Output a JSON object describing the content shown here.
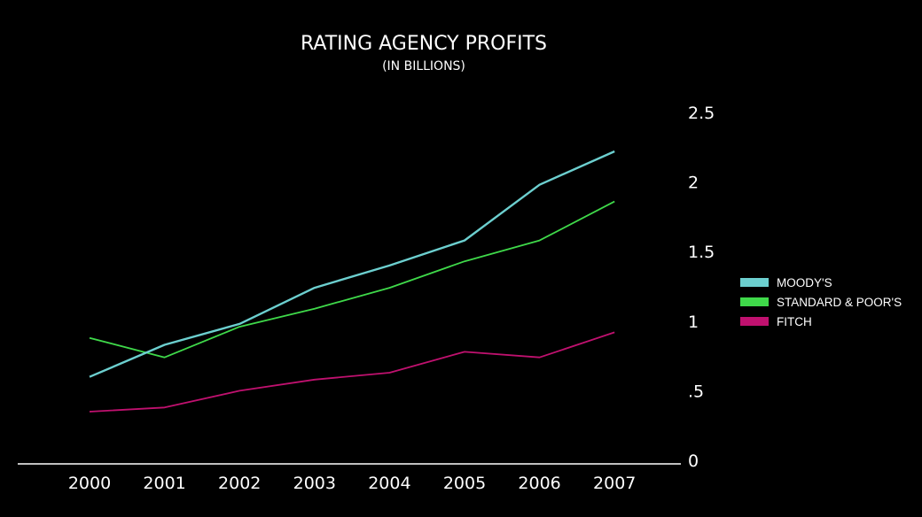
{
  "chart_data": {
    "type": "line",
    "title": "RATING AGENCY PROFITS",
    "subtitle": "(IN BILLIONS)",
    "xlabel": "",
    "ylabel": "",
    "categories": [
      "2000",
      "2001",
      "2002",
      "2003",
      "2004",
      "2005",
      "2006",
      "2007"
    ],
    "y_ticks": [
      {
        "value": 0,
        "label": "0"
      },
      {
        "value": 0.5,
        "label": ".5"
      },
      {
        "value": 1,
        "label": "1"
      },
      {
        "value": 1.5,
        "label": "1.5"
      },
      {
        "value": 2,
        "label": "2"
      },
      {
        "value": 2.5,
        "label": "2.5"
      }
    ],
    "ylim": [
      0,
      2.5
    ],
    "y_axis_side": "right",
    "grid": false,
    "legend_position": "right",
    "series": [
      {
        "name": "MOODY'S",
        "color": "#6ccfcf",
        "values": [
          0.6,
          0.83,
          0.98,
          1.24,
          1.4,
          1.58,
          1.98,
          2.22
        ]
      },
      {
        "name": "STANDARD & POOR'S",
        "color": "#3fd94a",
        "values": [
          0.88,
          0.74,
          0.96,
          1.09,
          1.24,
          1.43,
          1.58,
          1.86
        ]
      },
      {
        "name": "FITCH",
        "color": "#c0116f",
        "values": [
          0.35,
          0.38,
          0.5,
          0.58,
          0.63,
          0.78,
          0.74,
          0.92
        ]
      }
    ]
  }
}
